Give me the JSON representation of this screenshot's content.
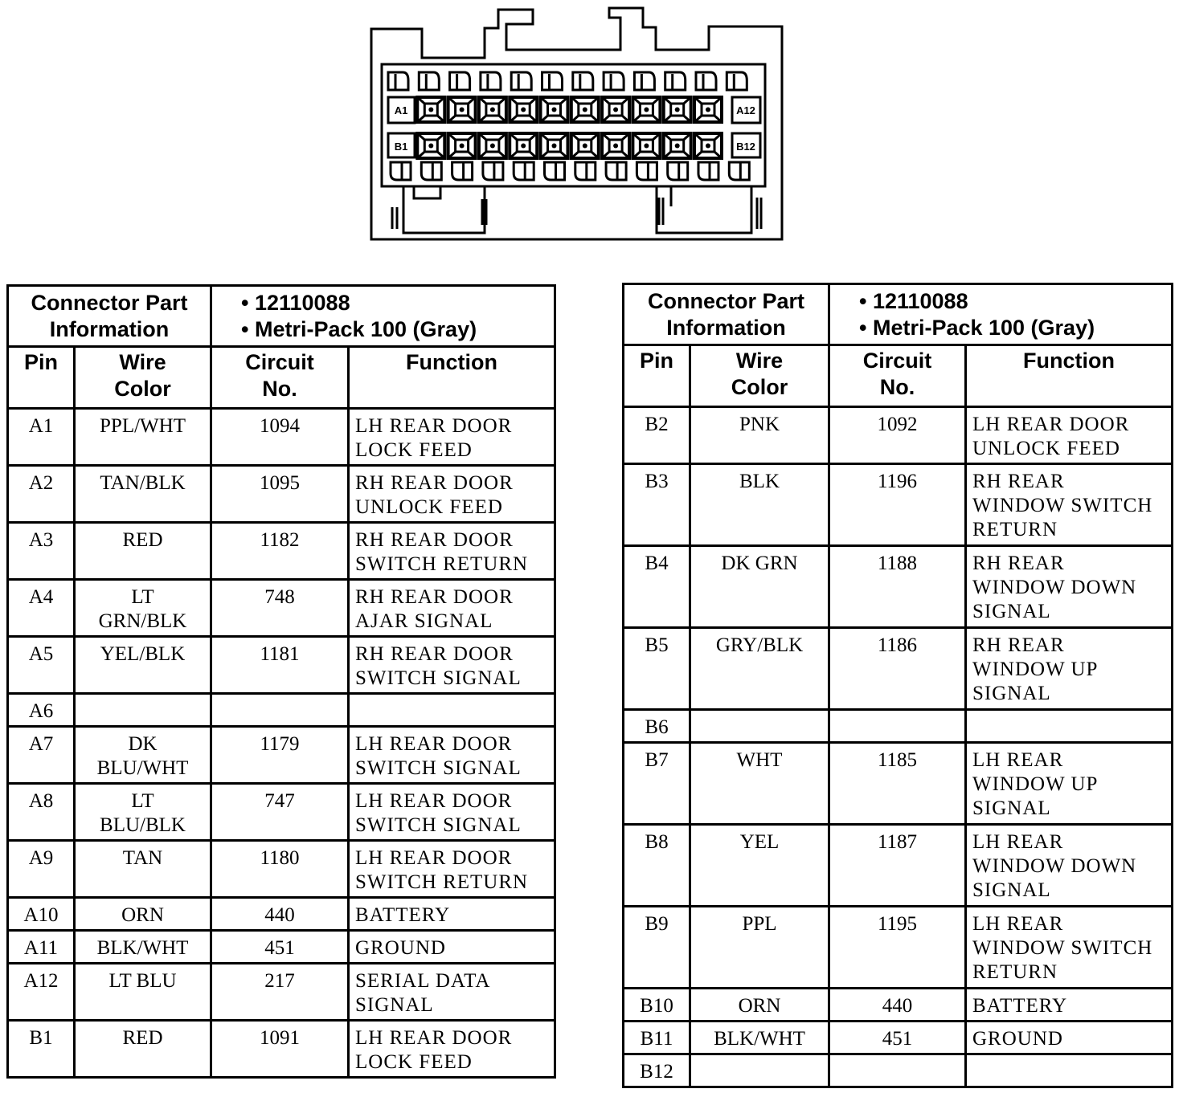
{
  "connector": {
    "pin_labels": {
      "a_first": "A1",
      "a_last": "A12",
      "b_first": "B1",
      "b_last": "B12"
    }
  },
  "tables": [
    {
      "header": {
        "info_label": "Connector Part\nInformation",
        "part_number": "• 12110088",
        "part_type": "• Metri-Pack 100 (Gray)",
        "columns": [
          "Pin",
          "Wire\nColor",
          "Circuit\nNo.",
          "Function"
        ]
      },
      "rows": [
        {
          "pin": "A1",
          "color": "PPL/WHT",
          "circuit": "1094",
          "function": "LH REAR DOOR\nLOCK FEED"
        },
        {
          "pin": "A2",
          "color": "TAN/BLK",
          "circuit": "1095",
          "function": "RH REAR DOOR\nUNLOCK FEED"
        },
        {
          "pin": "A3",
          "color": "RED",
          "circuit": "1182",
          "function": "RH REAR DOOR\nSWITCH RETURN"
        },
        {
          "pin": "A4",
          "color": "LT\nGRN/BLK",
          "circuit": "748",
          "function": "RH REAR DOOR\nAJAR SIGNAL"
        },
        {
          "pin": "A5",
          "color": "YEL/BLK",
          "circuit": "1181",
          "function": "RH REAR DOOR\nSWITCH SIGNAL"
        },
        {
          "pin": "A6",
          "color": "",
          "circuit": "",
          "function": ""
        },
        {
          "pin": "A7",
          "color": "DK\nBLU/WHT",
          "circuit": "1179",
          "function": "LH REAR DOOR\nSWITCH SIGNAL"
        },
        {
          "pin": "A8",
          "color": "LT\nBLU/BLK",
          "circuit": "747",
          "function": "LH REAR DOOR\nSWITCH SIGNAL"
        },
        {
          "pin": "A9",
          "color": "TAN",
          "circuit": "1180",
          "function": "LH REAR DOOR\nSWITCH RETURN"
        },
        {
          "pin": "A10",
          "color": "ORN",
          "circuit": "440",
          "function": "BATTERY"
        },
        {
          "pin": "A11",
          "color": "BLK/WHT",
          "circuit": "451",
          "function": "GROUND"
        },
        {
          "pin": "A12",
          "color": "LT BLU",
          "circuit": "217",
          "function": "SERIAL DATA\nSIGNAL"
        },
        {
          "pin": "B1",
          "color": "RED",
          "circuit": "1091",
          "function": "LH REAR DOOR\nLOCK FEED"
        }
      ]
    },
    {
      "header": {
        "info_label": "Connector Part\nInformation",
        "part_number": "• 12110088",
        "part_type": "• Metri-Pack 100 (Gray)",
        "columns": [
          "Pin",
          "Wire\nColor",
          "Circuit\nNo.",
          "Function"
        ]
      },
      "rows": [
        {
          "pin": "B2",
          "color": "PNK",
          "circuit": "1092",
          "function": "LH REAR DOOR\nUNLOCK FEED"
        },
        {
          "pin": "B3",
          "color": "BLK",
          "circuit": "1196",
          "function": "RH REAR\nWINDOW SWITCH\nRETURN"
        },
        {
          "pin": "B4",
          "color": "DK GRN",
          "circuit": "1188",
          "function": "RH REAR\nWINDOW DOWN\nSIGNAL"
        },
        {
          "pin": "B5",
          "color": "GRY/BLK",
          "circuit": "1186",
          "function": "RH REAR\nWINDOW UP\nSIGNAL"
        },
        {
          "pin": "B6",
          "color": "",
          "circuit": "",
          "function": ""
        },
        {
          "pin": "B7",
          "color": "WHT",
          "circuit": "1185",
          "function": "LH REAR\nWINDOW UP\nSIGNAL"
        },
        {
          "pin": "B8",
          "color": "YEL",
          "circuit": "1187",
          "function": "LH REAR\nWINDOW DOWN\nSIGNAL"
        },
        {
          "pin": "B9",
          "color": "PPL",
          "circuit": "1195",
          "function": "LH REAR\nWINDOW SWITCH\nRETURN"
        },
        {
          "pin": "B10",
          "color": "ORN",
          "circuit": "440",
          "function": "BATTERY"
        },
        {
          "pin": "B11",
          "color": "BLK/WHT",
          "circuit": "451",
          "function": "GROUND"
        },
        {
          "pin": "B12",
          "color": "",
          "circuit": "",
          "function": ""
        }
      ]
    }
  ]
}
